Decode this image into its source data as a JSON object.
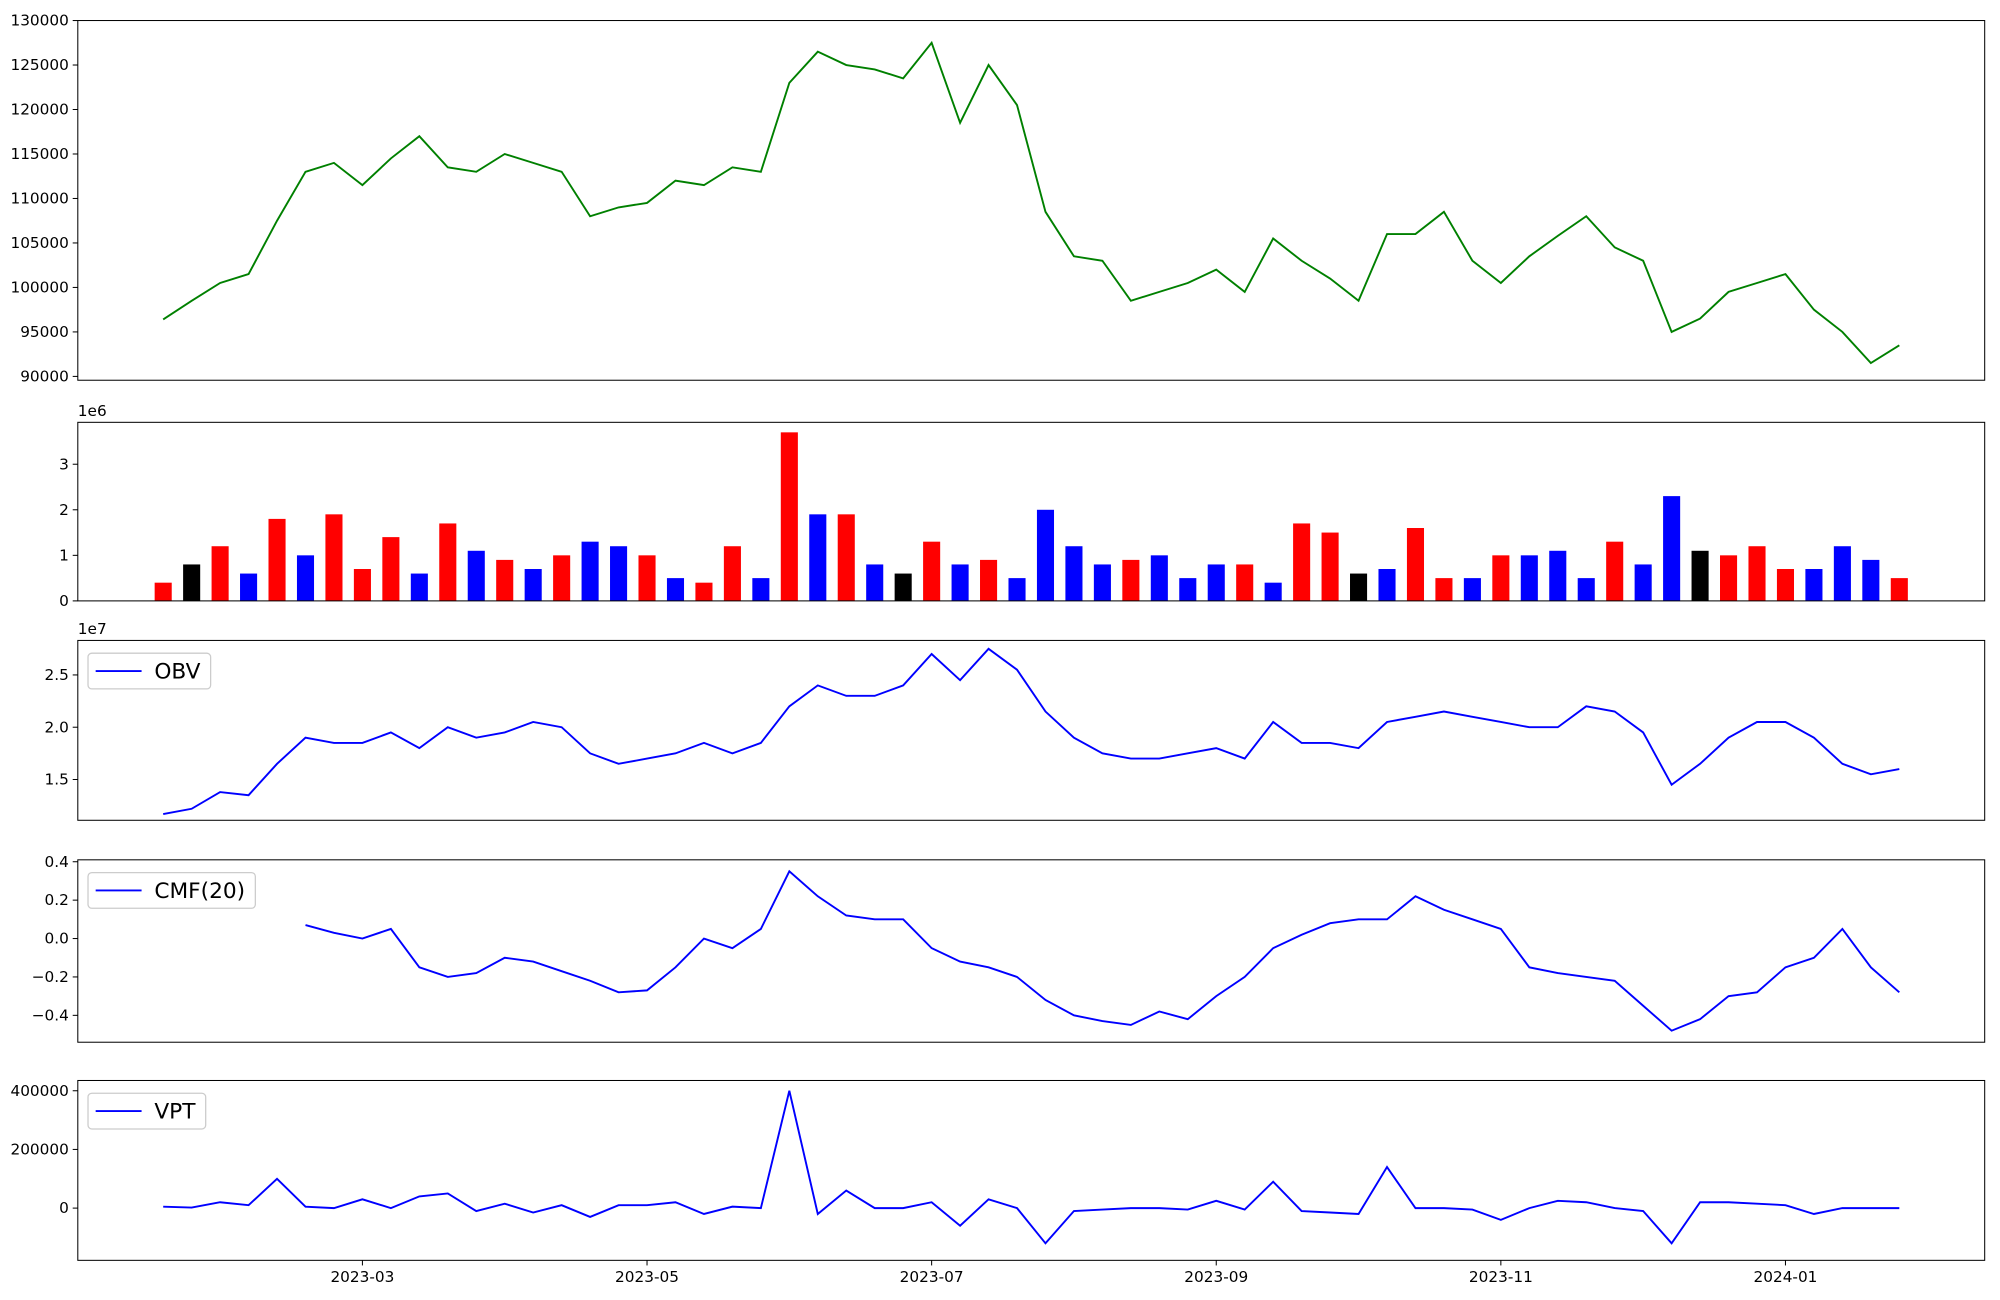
{
  "chart_data": [
    {
      "type": "line",
      "color": "green",
      "x": [
        "2023-01",
        "2023-01",
        "2023-02",
        "2023-02",
        "2023-02",
        "2023-02",
        "2023-02",
        "2023-03",
        "2023-03",
        "2023-03",
        "2023-03",
        "2023-03",
        "2023-04",
        "2023-04",
        "2023-04",
        "2023-04",
        "2023-04",
        "2023-05",
        "2023-05",
        "2023-05",
        "2023-05",
        "2023-05",
        "2023-06",
        "2023-06",
        "2023-06",
        "2023-06",
        "2023-06",
        "2023-07",
        "2023-07",
        "2023-07",
        "2023-07",
        "2023-07",
        "2023-08",
        "2023-08",
        "2023-08",
        "2023-08",
        "2023-08",
        "2023-09",
        "2023-09",
        "2023-09",
        "2023-09",
        "2023-09",
        "2023-10",
        "2023-10",
        "2023-10",
        "2023-10",
        "2023-10",
        "2023-11",
        "2023-11",
        "2023-11",
        "2023-11",
        "2023-11",
        "2023-12",
        "2023-12",
        "2023-12",
        "2023-12",
        "2023-12",
        "2024-01",
        "2024-01",
        "2024-01",
        "2024-01",
        "2024-01"
      ],
      "values": [
        96400,
        98500,
        100500,
        101500,
        107500,
        113000,
        114000,
        111500,
        114500,
        117000,
        113500,
        113000,
        115000,
        114000,
        113000,
        108000,
        109000,
        109500,
        112000,
        111500,
        113500,
        113000,
        123000,
        126500,
        125000,
        124500,
        123500,
        127500,
        118500,
        125000,
        120500,
        108500,
        103500,
        103000,
        98500,
        99500,
        100500,
        102000,
        99500,
        105500,
        103000,
        101000,
        98500,
        106000,
        106000,
        108500,
        103000,
        100500,
        103500,
        105800,
        108000,
        104500,
        103000,
        95000,
        96500,
        99500,
        100500,
        101500,
        97500,
        95000,
        91500,
        93500
      ],
      "ylim": [
        89570,
        130000
      ],
      "yticks": [
        90000,
        95000,
        100000,
        105000,
        110000,
        115000,
        120000,
        125000,
        130000
      ]
    },
    {
      "type": "bar",
      "offset_label": "1e6",
      "x": [
        "2023-01",
        "2023-01",
        "2023-02",
        "2023-02",
        "2023-02",
        "2023-02",
        "2023-02",
        "2023-03",
        "2023-03",
        "2023-03",
        "2023-03",
        "2023-03",
        "2023-04",
        "2023-04",
        "2023-04",
        "2023-04",
        "2023-04",
        "2023-05",
        "2023-05",
        "2023-05",
        "2023-05",
        "2023-05",
        "2023-06",
        "2023-06",
        "2023-06",
        "2023-06",
        "2023-06",
        "2023-07",
        "2023-07",
        "2023-07",
        "2023-07",
        "2023-07",
        "2023-08",
        "2023-08",
        "2023-08",
        "2023-08",
        "2023-08",
        "2023-09",
        "2023-09",
        "2023-09",
        "2023-09",
        "2023-09",
        "2023-10",
        "2023-10",
        "2023-10",
        "2023-10",
        "2023-10",
        "2023-11",
        "2023-11",
        "2023-11",
        "2023-11",
        "2023-11",
        "2023-12",
        "2023-12",
        "2023-12",
        "2023-12",
        "2023-12",
        "2024-01",
        "2024-01",
        "2024-01",
        "2024-01",
        "2024-01"
      ],
      "values": [
        0.4,
        0.8,
        1.2,
        0.6,
        1.8,
        1.0,
        1.9,
        0.7,
        1.4,
        0.6,
        1.7,
        1.1,
        0.9,
        0.7,
        1.0,
        1.3,
        1.2,
        1.0,
        0.5,
        0.4,
        1.2,
        0.5,
        3.7,
        1.9,
        1.9,
        0.8,
        0.6,
        1.3,
        0.8,
        0.9,
        0.5,
        2.0,
        1.2,
        0.8,
        0.9,
        1.0,
        0.5,
        0.8,
        0.8,
        0.4,
        1.7,
        1.5,
        0.6,
        0.7,
        1.6,
        0.5,
        0.5,
        1.0,
        1.0,
        1.1,
        0.5,
        1.3,
        0.8,
        2.3,
        1.1,
        1.0,
        1.2,
        0.7,
        0.7,
        1.2,
        0.9,
        0.5
      ],
      "colors": [
        "red",
        "black",
        "red",
        "blue",
        "red",
        "blue",
        "red",
        "red",
        "red",
        "blue",
        "red",
        "blue",
        "red",
        "blue",
        "red",
        "blue",
        "blue",
        "red",
        "blue",
        "red",
        "red",
        "blue",
        "red",
        "blue",
        "red",
        "blue",
        "black",
        "red",
        "blue",
        "red",
        "blue",
        "blue",
        "blue",
        "blue",
        "red",
        "blue",
        "blue",
        "blue",
        "red",
        "blue",
        "red",
        "red",
        "black",
        "blue",
        "red",
        "red",
        "blue",
        "red",
        "blue",
        "blue",
        "blue",
        "red",
        "blue",
        "blue",
        "black",
        "red",
        "red",
        "red",
        "blue",
        "blue",
        "blue",
        "red"
      ],
      "ylim": [
        0,
        3.92
      ],
      "yticks": [
        0,
        1,
        2,
        3
      ]
    },
    {
      "type": "line",
      "offset_label": "1e7",
      "legend": "upper left",
      "x": [
        "2023-01",
        "2023-01",
        "2023-02",
        "2023-02",
        "2023-02",
        "2023-02",
        "2023-02",
        "2023-03",
        "2023-03",
        "2023-03",
        "2023-03",
        "2023-03",
        "2023-04",
        "2023-04",
        "2023-04",
        "2023-04",
        "2023-04",
        "2023-05",
        "2023-05",
        "2023-05",
        "2023-05",
        "2023-05",
        "2023-06",
        "2023-06",
        "2023-06",
        "2023-06",
        "2023-06",
        "2023-07",
        "2023-07",
        "2023-07",
        "2023-07",
        "2023-07",
        "2023-08",
        "2023-08",
        "2023-08",
        "2023-08",
        "2023-08",
        "2023-09",
        "2023-09",
        "2023-09",
        "2023-09",
        "2023-09",
        "2023-10",
        "2023-10",
        "2023-10",
        "2023-10",
        "2023-10",
        "2023-11",
        "2023-11",
        "2023-11",
        "2023-11",
        "2023-11",
        "2023-12",
        "2023-12",
        "2023-12",
        "2023-12",
        "2023-12",
        "2024-01",
        "2024-01",
        "2024-01",
        "2024-01",
        "2024-01"
      ],
      "series": [
        {
          "name": "OBV",
          "color": "blue",
          "values": [
            1.17,
            1.22,
            1.38,
            1.35,
            1.65,
            1.9,
            1.85,
            1.85,
            1.95,
            1.8,
            2.0,
            1.9,
            1.95,
            2.05,
            2.0,
            1.75,
            1.65,
            1.7,
            1.75,
            1.85,
            1.75,
            1.85,
            2.2,
            2.4,
            2.3,
            2.3,
            2.4,
            2.7,
            2.45,
            2.75,
            2.55,
            2.15,
            1.9,
            1.75,
            1.7,
            1.7,
            1.75,
            1.8,
            1.7,
            2.05,
            1.85,
            1.85,
            1.8,
            2.05,
            2.1,
            2.15,
            2.1,
            2.05,
            2.0,
            2.0,
            2.2,
            2.15,
            1.95,
            1.45,
            1.65,
            1.9,
            2.05,
            2.05,
            1.9,
            1.65,
            1.55,
            1.6
          ]
        }
      ],
      "ylim": [
        1.11,
        2.83
      ],
      "yticks": [
        {
          "value": 1.5,
          "label": "1.5"
        },
        {
          "value": 2.0,
          "label": "2.0"
        },
        {
          "value": 2.5,
          "label": "2.5"
        }
      ]
    },
    {
      "type": "line",
      "legend": "upper left",
      "x": [
        "2023-01",
        "2023-01",
        "2023-02",
        "2023-02",
        "2023-02",
        "2023-02",
        "2023-02",
        "2023-03",
        "2023-03",
        "2023-03",
        "2023-03",
        "2023-03",
        "2023-04",
        "2023-04",
        "2023-04",
        "2023-04",
        "2023-04",
        "2023-05",
        "2023-05",
        "2023-05",
        "2023-05",
        "2023-05",
        "2023-06",
        "2023-06",
        "2023-06",
        "2023-06",
        "2023-06",
        "2023-07",
        "2023-07",
        "2023-07",
        "2023-07",
        "2023-07",
        "2023-08",
        "2023-08",
        "2023-08",
        "2023-08",
        "2023-08",
        "2023-09",
        "2023-09",
        "2023-09",
        "2023-09",
        "2023-09",
        "2023-10",
        "2023-10",
        "2023-10",
        "2023-10",
        "2023-10",
        "2023-11",
        "2023-11",
        "2023-11",
        "2023-11",
        "2023-11",
        "2023-12",
        "2023-12",
        "2023-12",
        "2023-12",
        "2023-12",
        "2024-01",
        "2024-01",
        "2024-01",
        "2024-01",
        "2024-01"
      ],
      "series": [
        {
          "name": "CMF(20)",
          "color": "blue",
          "values": [
            null,
            null,
            null,
            null,
            null,
            0.07,
            0.03,
            0.0,
            0.05,
            -0.15,
            -0.2,
            -0.18,
            -0.1,
            -0.12,
            -0.17,
            -0.22,
            -0.28,
            -0.27,
            -0.15,
            0.0,
            -0.05,
            0.05,
            0.35,
            0.22,
            0.12,
            0.1,
            0.1,
            -0.05,
            -0.12,
            -0.15,
            -0.2,
            -0.32,
            -0.4,
            -0.43,
            -0.45,
            -0.38,
            -0.42,
            -0.3,
            -0.2,
            -0.05,
            0.02,
            0.08,
            0.1,
            0.1,
            0.22,
            0.15,
            0.1,
            0.05,
            -0.15,
            -0.18,
            -0.2,
            -0.22,
            -0.35,
            -0.48,
            -0.42,
            -0.3,
            -0.28,
            -0.15,
            -0.1,
            0.05,
            -0.15,
            -0.28
          ]
        }
      ],
      "ylim": [
        -0.54,
        0.41
      ],
      "yticks": [
        {
          "value": -0.4,
          "label": "−0.4"
        },
        {
          "value": -0.2,
          "label": "−0.2"
        },
        {
          "value": 0.0,
          "label": "0.0"
        },
        {
          "value": 0.2,
          "label": "0.2"
        },
        {
          "value": 0.4,
          "label": "0.4"
        }
      ]
    },
    {
      "type": "line",
      "legend": "upper left",
      "x": [
        "2023-01",
        "2023-01",
        "2023-02",
        "2023-02",
        "2023-02",
        "2023-02",
        "2023-02",
        "2023-03",
        "2023-03",
        "2023-03",
        "2023-03",
        "2023-03",
        "2023-04",
        "2023-04",
        "2023-04",
        "2023-04",
        "2023-04",
        "2023-05",
        "2023-05",
        "2023-05",
        "2023-05",
        "2023-05",
        "2023-06",
        "2023-06",
        "2023-06",
        "2023-06",
        "2023-06",
        "2023-07",
        "2023-07",
        "2023-07",
        "2023-07",
        "2023-07",
        "2023-08",
        "2023-08",
        "2023-08",
        "2023-08",
        "2023-08",
        "2023-09",
        "2023-09",
        "2023-09",
        "2023-09",
        "2023-09",
        "2023-10",
        "2023-10",
        "2023-10",
        "2023-10",
        "2023-10",
        "2023-11",
        "2023-11",
        "2023-11",
        "2023-11",
        "2023-11",
        "2023-12",
        "2023-12",
        "2023-12",
        "2023-12",
        "2023-12",
        "2024-01",
        "2024-01",
        "2024-01",
        "2024-01",
        "2024-01"
      ],
      "series": [
        {
          "name": "VPT",
          "color": "blue",
          "values": [
            5000,
            2000,
            20000,
            10000,
            100000,
            5000,
            0,
            30000,
            0,
            40000,
            50000,
            -10000,
            15000,
            -15000,
            10000,
            -30000,
            10000,
            10000,
            20000,
            -20000,
            5000,
            0,
            400000,
            -20000,
            60000,
            0,
            0,
            20000,
            -60000,
            30000,
            0,
            -120000,
            -10000,
            -5000,
            0,
            0,
            -5000,
            25000,
            -5000,
            90000,
            -10000,
            -15000,
            -20000,
            140000,
            0,
            0,
            -5000,
            -40000,
            0,
            25000,
            20000,
            0,
            -10000,
            -120000,
            20000,
            20000,
            15000,
            10000,
            -20000,
            0,
            0,
            0
          ]
        }
      ],
      "ylim": [
        -178000,
        435000
      ],
      "yticks": [
        0,
        200000,
        400000
      ],
      "xticks": [
        "2023-03",
        "2023-05",
        "2023-07",
        "2023-09",
        "2023-11",
        "2024-01"
      ]
    }
  ]
}
